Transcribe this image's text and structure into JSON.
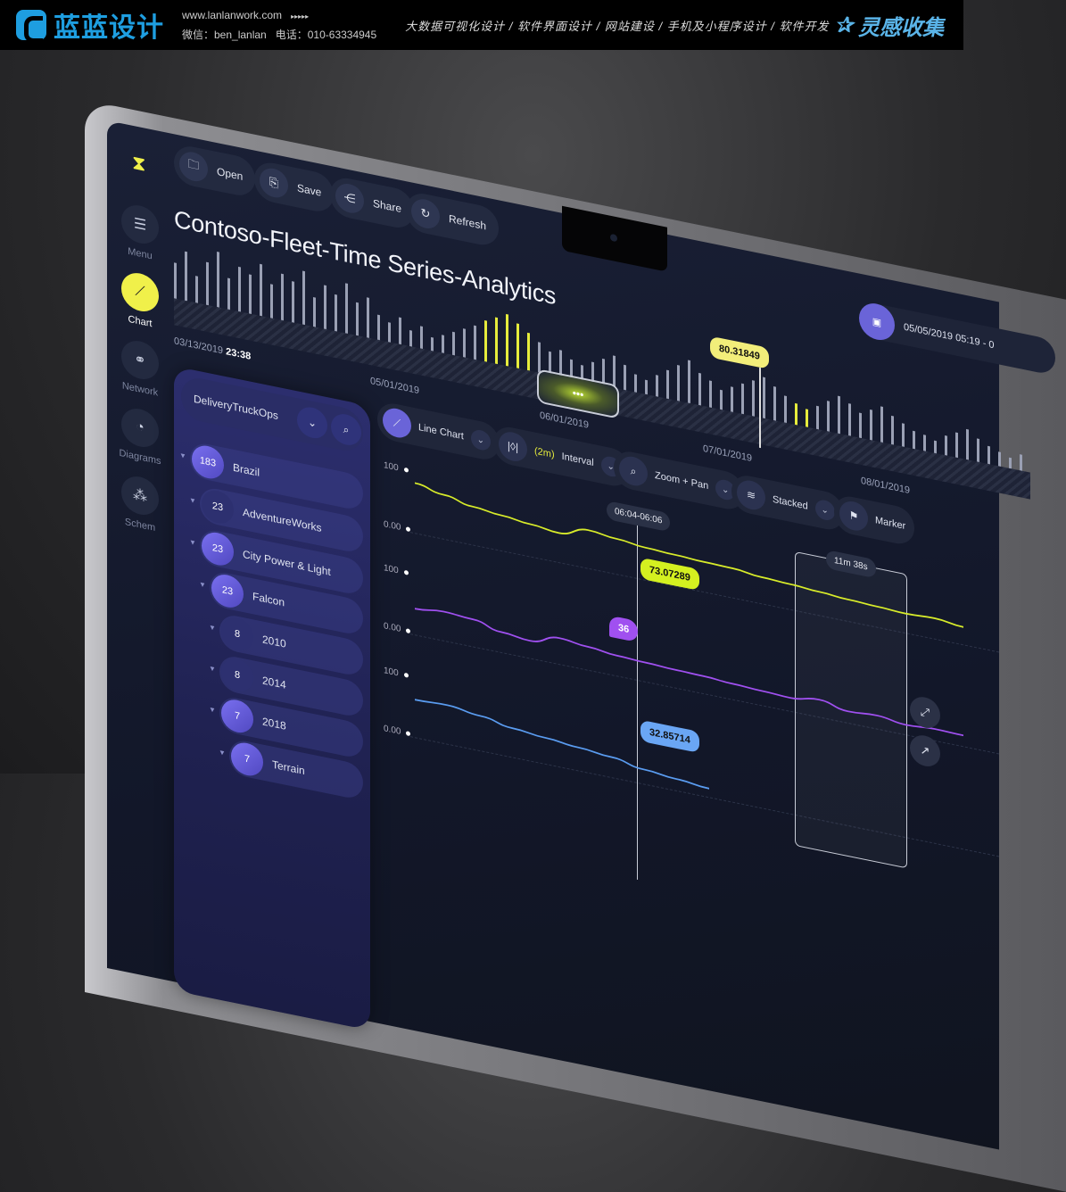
{
  "watermark": {
    "brand": "蓝蓝设计",
    "site": "www.lanlanwork.com",
    "arrows": "▸▸▸▸▸",
    "wechat": "微信：ben_lanlan",
    "phone": "电话：010-63334945",
    "services": "大数据可视化设计 / 软件界面设计 / 网站建设 / 手机及小程序设计 / 软件开发",
    "brand2": "灵感收集"
  },
  "sidebar": {
    "items": [
      {
        "label": "Menu",
        "icon": "menu-icon",
        "glyph": "☰"
      },
      {
        "label": "Chart",
        "icon": "chart-icon",
        "glyph": "⟋",
        "active": true
      },
      {
        "label": "Network",
        "icon": "network-icon",
        "glyph": "⚭"
      },
      {
        "label": "Diagrams",
        "icon": "pie-icon",
        "glyph": "◔"
      },
      {
        "label": "Schem",
        "icon": "schema-icon",
        "glyph": "⁂"
      }
    ]
  },
  "toolbar": {
    "buttons": [
      {
        "label": "Open",
        "glyph": "🗀"
      },
      {
        "label": "Save",
        "glyph": "⎘"
      },
      {
        "label": "Share",
        "glyph": "⋲"
      },
      {
        "label": "Refresh",
        "glyph": "↻"
      }
    ]
  },
  "title": "Contoso-Fleet-Time Series-Analytics",
  "timeline": {
    "start_date": "03/13/2019",
    "start_time": "23:38",
    "dates": [
      "05/01/2019",
      "06/01/2019",
      "07/01/2019",
      "08/01/2019"
    ],
    "handle": "•••",
    "marker_value": "80.31849",
    "range": "05/05/2019 05:19 - 0",
    "histogram": [
      40,
      55,
      30,
      48,
      62,
      35,
      50,
      44,
      58,
      38,
      52,
      46,
      60,
      33,
      49,
      41,
      56,
      37,
      45,
      28,
      22,
      30,
      18,
      25,
      15,
      20,
      26,
      32,
      38,
      46,
      52,
      58,
      50,
      42,
      34,
      26,
      30,
      22,
      18,
      24,
      30,
      36,
      28,
      20,
      16,
      24,
      32,
      40,
      48,
      36,
      30,
      22,
      28,
      34,
      40,
      46,
      38,
      30,
      24,
      20,
      26,
      34,
      42,
      36,
      28,
      34,
      40,
      32,
      26,
      20,
      18,
      14,
      22,
      28,
      34,
      26,
      20,
      16,
      12,
      18
    ]
  },
  "tree": {
    "root": "DeliveryTruckOps",
    "rows": [
      {
        "count": "183",
        "label": "Brazil",
        "level": 0
      },
      {
        "count": "23",
        "label": "AdventureWorks",
        "level": 1
      },
      {
        "count": "23",
        "label": "City Power & Light",
        "level": 1
      },
      {
        "count": "23",
        "label": "Falcon",
        "level": 2
      },
      {
        "count": "8",
        "label": "2010",
        "level": 3
      },
      {
        "count": "8",
        "label": "2014",
        "level": 3
      },
      {
        "count": "7",
        "label": "2018",
        "level": 3
      },
      {
        "count": "7",
        "label": "Terrain",
        "level": 4
      }
    ]
  },
  "chart_toolbar": [
    {
      "label": "Line Chart",
      "glyph": "⟋"
    },
    {
      "label": "(2m)",
      "label2": "Interval",
      "glyph": "|◊|"
    },
    {
      "label": "Zoom + Pan",
      "glyph": "⌕"
    },
    {
      "label": "Stacked",
      "glyph": "≋"
    },
    {
      "label": "Marker",
      "glyph": "⚑"
    }
  ],
  "chart": {
    "y_labels": [
      "100",
      "0.00",
      "100",
      "0.00",
      "100",
      "0.00"
    ],
    "cursor_label": "06:04-06:06",
    "selection_label": "11m 38s",
    "series": [
      {
        "color": "#d8ec2a",
        "values": [
          80,
          70,
          60,
          55,
          50,
          45,
          60,
          55,
          50,
          48,
          46,
          45,
          40,
          38,
          35,
          32,
          30,
          28,
          30,
          25
        ],
        "callout": "73.07289"
      },
      {
        "color": "#a050f0",
        "values": [
          40,
          45,
          42,
          30,
          25,
          40,
          35,
          30,
          28,
          26,
          25,
          22,
          20,
          18,
          25,
          15,
          18,
          12,
          15,
          14
        ],
        "callout": "36"
      },
      {
        "color": "#5a9cf0",
        "values": [
          60,
          62,
          55,
          45,
          40,
          35,
          30,
          20,
          15,
          10
        ],
        "callout": "32.85714"
      }
    ]
  }
}
